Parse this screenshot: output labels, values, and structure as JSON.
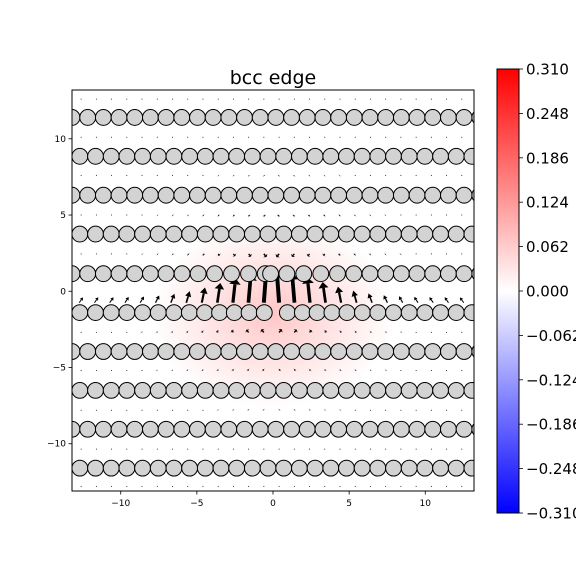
{
  "chart_data": {
    "type": "scatter",
    "title": "bcc edge",
    "xlabel": "",
    "ylabel": "",
    "xlim": [
      -13.2,
      13.2
    ],
    "ylim": [
      -13.1,
      13.2
    ],
    "xticks": [
      -10,
      -5,
      0,
      5,
      10
    ],
    "yticks": [
      -10,
      -5,
      0,
      5,
      10
    ],
    "xtick_labels": [
      "−10",
      "−5",
      "0",
      "5",
      "10"
    ],
    "ytick_labels": [
      "−10",
      "−5",
      "0",
      "5",
      "10"
    ],
    "grid": false,
    "legend": "none",
    "atoms": {
      "rows_y": [
        11.4,
        8.85,
        6.3,
        3.75,
        1.15,
        -1.4,
        -3.95,
        -6.5,
        -9.05,
        -11.6
      ],
      "spacing": 1.03,
      "radius": 0.52,
      "fill": "#d3d3d3",
      "edge": "#000000"
    },
    "colorbar": {
      "colormap": "bwr",
      "vmin": -0.31,
      "vmax": 0.31,
      "ticks": [
        0.31,
        0.248,
        0.186,
        0.124,
        0.062,
        0.0,
        -0.062,
        -0.124,
        -0.186,
        -0.248,
        -0.31
      ],
      "tick_labels": [
        "0.310",
        "0.248",
        "0.186",
        "0.124",
        "0.062",
        "0.000",
        "−0.062",
        "−0.124",
        "−0.186",
        "−0.248",
        "−0.310"
      ]
    },
    "field": {
      "description_peak_value": 0.05,
      "center": [
        0,
        -1.5
      ]
    }
  }
}
